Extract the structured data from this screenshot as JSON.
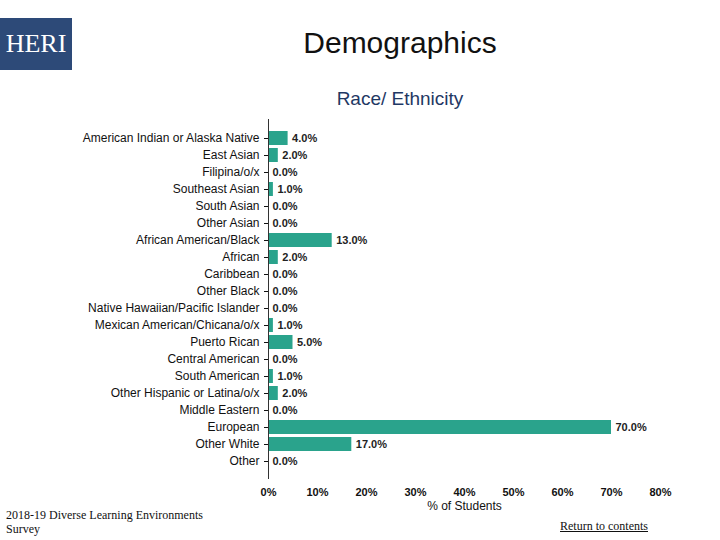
{
  "chart_data": {
    "type": "bar",
    "orientation": "horizontal",
    "title": "Demographics",
    "subtitle": "Race/ Ethnicity",
    "x_label": "% of Students",
    "categories": [
      "American Indian or Alaska Native",
      "East Asian",
      "Filipina/o/x",
      "Southeast Asian",
      "South Asian",
      "Other Asian",
      "African American/Black",
      "African",
      "Caribbean",
      "Other Black",
      "Native Hawaiian/Pacific Islander",
      "Mexican American/Chicana/o/x",
      "Puerto Rican",
      "Central American",
      "South American",
      "Other Hispanic or Latina/o/x",
      "Middle Eastern",
      "European",
      "Other White",
      "Other"
    ],
    "values": [
      4,
      2,
      0,
      1,
      0,
      0,
      13,
      2,
      0,
      0,
      0,
      1,
      5,
      0,
      1,
      2,
      0,
      70,
      17,
      0
    ],
    "value_labels": [
      "4.0%",
      "2.0%",
      "0.0%",
      "1.0%",
      "0.0%",
      "0.0%",
      "13.0%",
      "2.0%",
      "0.0%",
      "0.0%",
      "0.0%",
      "1.0%",
      "5.0%",
      "0.0%",
      "1.0%",
      "2.0%",
      "0.0%",
      "70.0%",
      "17.0%",
      "0.0%"
    ],
    "data_labels": true,
    "color": "#2aa38c",
    "xlim": [
      0,
      80
    ],
    "xticks": [
      {
        "value": 0,
        "label": "0%"
      },
      {
        "value": 10,
        "label": "10%"
      },
      {
        "value": 20,
        "label": "20%"
      },
      {
        "value": 30,
        "label": "30%"
      },
      {
        "value": 40,
        "label": "40%"
      },
      {
        "value": 50,
        "label": "50%"
      },
      {
        "value": 60,
        "label": "60%"
      },
      {
        "value": 70,
        "label": "70%"
      },
      {
        "value": 80,
        "label": "80%"
      }
    ],
    "grid": false
  },
  "page": {
    "logo": "HERI",
    "source": "2018-19 Diverse Learning Environments Survey",
    "link": "Return to contents"
  }
}
